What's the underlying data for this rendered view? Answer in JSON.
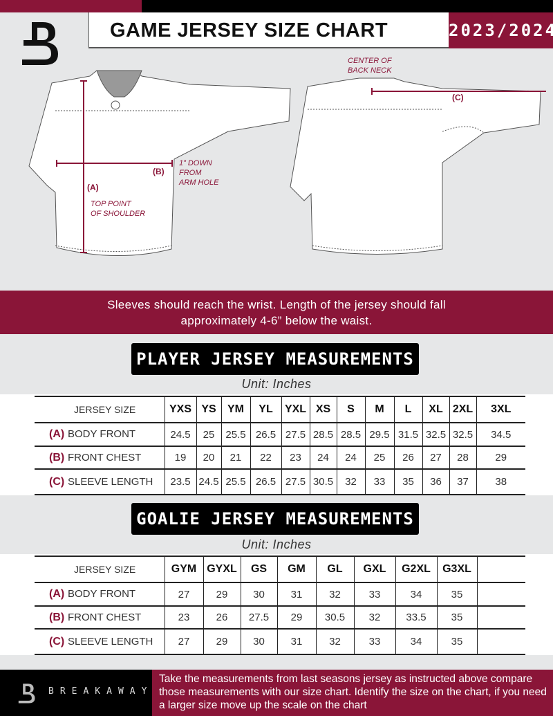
{
  "header": {
    "title": "GAME JERSEY SIZE CHART",
    "season": "2023/2024"
  },
  "brand": {
    "name": "BREAKAWAY",
    "logo_letter": "B"
  },
  "colors": {
    "accent": "#8a1538",
    "dark": "#000000",
    "background": "#e6e7e8"
  },
  "diagram": {
    "center_back_neck": [
      "CENTER OF",
      "BACK NECK"
    ],
    "label_a": "(A)",
    "label_b": "(B)",
    "label_c": "(C)",
    "top_shoulder": [
      "TOP POINT",
      "OF SHOULDER"
    ],
    "arm_hole": [
      "1” DOWN",
      "FROM",
      "ARM HOLE"
    ]
  },
  "banner": {
    "line1": "Sleeves should reach the wrist. Length of the jersey should fall",
    "line2": "approximately 4-6” below the waist."
  },
  "player": {
    "title": "PLAYER JERSEY MEASUREMENTS",
    "unit": "Unit: Inches",
    "size_header": "JERSEY SIZE",
    "sizes": [
      "YXS",
      "YS",
      "YM",
      "YL",
      "YXL",
      "XS",
      "S",
      "M",
      "L",
      "XL",
      "2XL",
      "3XL"
    ],
    "rows": [
      {
        "letter": "(A)",
        "label": "BODY FRONT",
        "values": [
          "24.5",
          "25",
          "25.5",
          "26.5",
          "27.5",
          "28.5",
          "28.5",
          "29.5",
          "31.5",
          "32.5",
          "32.5",
          "34.5"
        ]
      },
      {
        "letter": "(B)",
        "label": "FRONT CHEST",
        "values": [
          "19",
          "20",
          "21",
          "22",
          "23",
          "24",
          "24",
          "25",
          "26",
          "27",
          "28",
          "29"
        ]
      },
      {
        "letter": "(C)",
        "label": "SLEEVE LENGTH",
        "values": [
          "23.5",
          "24.5",
          "25.5",
          "26.5",
          "27.5",
          "30.5",
          "32",
          "33",
          "35",
          "36",
          "37",
          "38"
        ]
      }
    ]
  },
  "goalie": {
    "title": "GOALIE JERSEY MEASUREMENTS",
    "unit": "Unit: Inches",
    "size_header": "JERSEY SIZE",
    "sizes": [
      "GYM",
      "GYXL",
      "GS",
      "GM",
      "GL",
      "GXL",
      "G2XL",
      "G3XL"
    ],
    "rows": [
      {
        "letter": "(A)",
        "label": "BODY FRONT",
        "values": [
          "27",
          "29",
          "30",
          "31",
          "32",
          "33",
          "34",
          "35"
        ]
      },
      {
        "letter": "(B)",
        "label": "FRONT CHEST",
        "values": [
          "23",
          "26",
          "27.5",
          "29",
          "30.5",
          "32",
          "33.5",
          "35"
        ]
      },
      {
        "letter": "(C)",
        "label": "SLEEVE LENGTH",
        "values": [
          "27",
          "29",
          "30",
          "31",
          "32",
          "33",
          "34",
          "35"
        ]
      }
    ]
  },
  "footer": {
    "instructions": "Take the measurements from last seasons jersey as instructed above compare those measurements  with our size chart. Identify the size on the chart, if you need a larger size move up the scale on the chart"
  }
}
